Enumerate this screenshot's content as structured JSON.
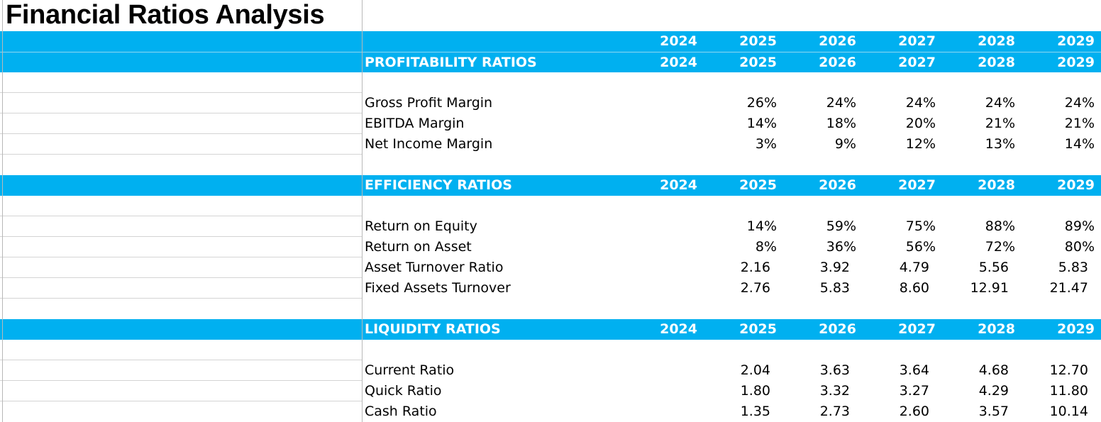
{
  "title": "Financial Ratios Analysis",
  "header_years": [
    "2024",
    "2025",
    "2026",
    "2027",
    "2028",
    "2029"
  ],
  "sections": [
    {
      "heading": "PROFITABILITY RATIOS",
      "years": [
        "2024",
        "2025",
        "2026",
        "2027",
        "2028",
        "2029"
      ],
      "rows": [
        {
          "label": "Gross Profit Margin",
          "values": [
            "",
            "26%",
            "24%",
            "24%",
            "24%",
            "24%"
          ]
        },
        {
          "label": "EBITDA Margin",
          "values": [
            "",
            "14%",
            "18%",
            "20%",
            "21%",
            "21%"
          ]
        },
        {
          "label": "Net Income Margin",
          "values": [
            "",
            "3%",
            "9%",
            "12%",
            "13%",
            "14%"
          ]
        }
      ]
    },
    {
      "heading": "EFFICIENCY RATIOS",
      "years": [
        "2024",
        "2025",
        "2026",
        "2027",
        "2028",
        "2029"
      ],
      "rows": [
        {
          "label": "Return on Equity",
          "values": [
            "",
            "14%",
            "59%",
            "75%",
            "88%",
            "89%"
          ]
        },
        {
          "label": "Return on Asset",
          "values": [
            "",
            "8%",
            "36%",
            "56%",
            "72%",
            "80%"
          ]
        },
        {
          "label": "Asset Turnover Ratio",
          "values": [
            "",
            "2.16",
            "3.92",
            "4.79",
            "5.56",
            "5.83"
          ]
        },
        {
          "label": "Fixed Assets Turnover",
          "values": [
            "",
            "2.76",
            "5.83",
            "8.60",
            "12.91",
            "21.47"
          ]
        }
      ]
    },
    {
      "heading": "LIQUIDITY RATIOS",
      "years": [
        "2024",
        "2025",
        "2026",
        "2027",
        "2028",
        "2029"
      ],
      "rows": [
        {
          "label": "Current Ratio",
          "values": [
            "",
            "2.04",
            "3.63",
            "3.64",
            "4.68",
            "12.70"
          ]
        },
        {
          "label": "Quick Ratio",
          "values": [
            "",
            "1.80",
            "3.32",
            "3.27",
            "4.29",
            "11.80"
          ]
        },
        {
          "label": "Cash Ratio",
          "values": [
            "",
            "1.35",
            "2.73",
            "2.60",
            "3.57",
            "10.14"
          ]
        }
      ]
    }
  ],
  "colors": {
    "band": "#00b0f0",
    "band_text": "#ffffff",
    "text": "#000000"
  }
}
